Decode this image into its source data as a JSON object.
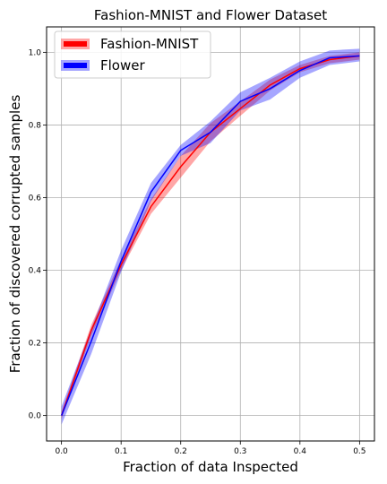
{
  "chart_data": {
    "type": "line",
    "title": "Fashion-MNIST and Flower Dataset",
    "xlabel": "Fraction of data Inspected",
    "ylabel": "Fraction of discovered corrupted samples",
    "xlim": [
      -0.025,
      0.525
    ],
    "ylim": [
      -0.07,
      1.07
    ],
    "xticks": [
      0.0,
      0.1,
      0.2,
      0.3,
      0.4,
      0.5
    ],
    "yticks": [
      0.0,
      0.2,
      0.4,
      0.6,
      0.8,
      1.0
    ],
    "xtick_labels": [
      "0.0",
      "0.1",
      "0.2",
      "0.3",
      "0.4",
      "0.5"
    ],
    "ytick_labels": [
      "0.0",
      "0.2",
      "0.4",
      "0.6",
      "0.8",
      "1.0"
    ],
    "grid": true,
    "legend_position": "top-left",
    "x": [
      0.0,
      0.05,
      0.1,
      0.15,
      0.2,
      0.25,
      0.3,
      0.35,
      0.4,
      0.45,
      0.5
    ],
    "series": [
      {
        "name": "Fashion-MNIST",
        "color": "#ff0000",
        "values": [
          0.0,
          0.235,
          0.415,
          0.575,
          0.685,
          0.78,
          0.845,
          0.91,
          0.955,
          0.98,
          0.99
        ],
        "lower": [
          -0.01,
          0.22,
          0.4,
          0.555,
          0.655,
          0.755,
          0.825,
          0.895,
          0.945,
          0.97,
          0.98
        ],
        "upper": [
          0.01,
          0.25,
          0.43,
          0.595,
          0.715,
          0.805,
          0.865,
          0.925,
          0.965,
          0.99,
          1.0
        ]
      },
      {
        "name": "Flower",
        "color": "#0000ff",
        "values": [
          0.0,
          0.205,
          0.425,
          0.615,
          0.73,
          0.78,
          0.865,
          0.9,
          0.95,
          0.985,
          0.99
        ],
        "lower": [
          -0.025,
          0.17,
          0.395,
          0.59,
          0.715,
          0.75,
          0.84,
          0.87,
          0.93,
          0.965,
          0.975
        ],
        "upper": [
          0.025,
          0.24,
          0.455,
          0.64,
          0.745,
          0.81,
          0.89,
          0.93,
          0.975,
          1.005,
          1.01
        ]
      }
    ]
  }
}
